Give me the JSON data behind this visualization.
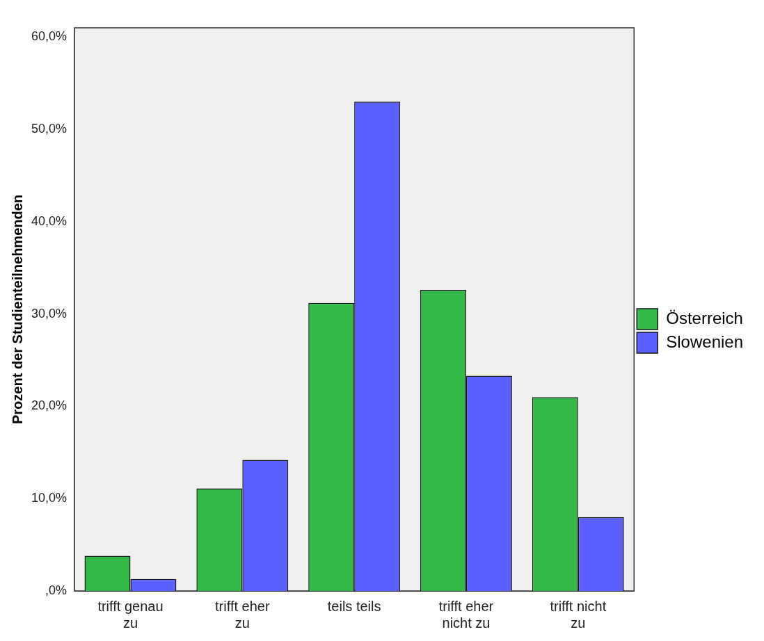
{
  "chart_data": {
    "type": "bar",
    "ylabel": "Prozent der Studienteilnehmenden",
    "categories": [
      "trifft genau zu",
      "trifft eher zu",
      "teils teils",
      "trifft eher nicht zu",
      "trifft nicht zu"
    ],
    "series": [
      {
        "name": "Österreich",
        "color": "#33b94a",
        "values": [
          3.8,
          11.1,
          31.2,
          32.6,
          21.0
        ]
      },
      {
        "name": "Slowenien",
        "color": "#5a5ffe",
        "values": [
          1.3,
          14.2,
          53.0,
          23.3,
          8.0
        ]
      }
    ],
    "ylim": [
      0,
      61
    ],
    "yticks": [
      {
        "value": 0,
        "label": ",0%"
      },
      {
        "value": 10,
        "label": "10,0%"
      },
      {
        "value": 20,
        "label": "20,0%"
      },
      {
        "value": 30,
        "label": "30,0%"
      },
      {
        "value": 40,
        "label": "40,0%"
      },
      {
        "value": 50,
        "label": "50,0%"
      },
      {
        "value": 60,
        "label": "60,0%"
      }
    ],
    "grid": false,
    "legend": "right"
  }
}
